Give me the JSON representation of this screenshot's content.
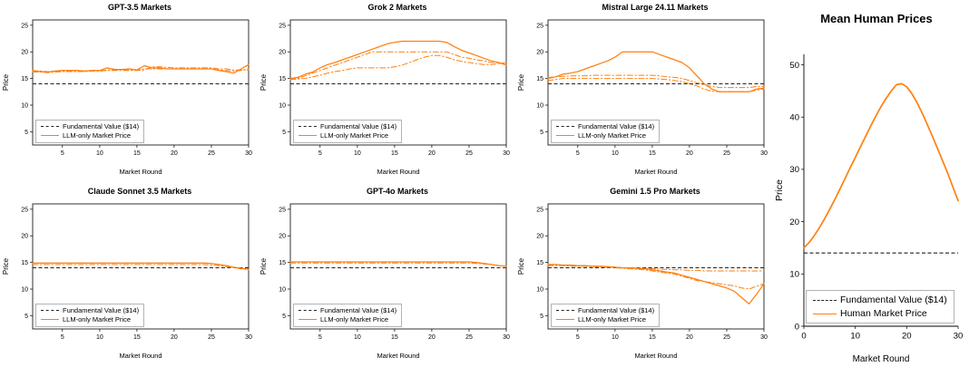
{
  "colors": {
    "llm_orange": "#ff7f0e",
    "fundamental": "#222222",
    "spine": "#000000",
    "legend_border": "#b3b3b3"
  },
  "chart_data": [
    {
      "type": "line",
      "title": "GPT-3.5 Markets",
      "xlabel": "Market Round",
      "ylabel": "Price",
      "xlim": [
        1,
        30
      ],
      "ylim": [
        2.5,
        26
      ],
      "xticks": [
        5,
        10,
        15,
        20,
        25,
        30
      ],
      "yticks": [
        5,
        10,
        15,
        20,
        25
      ],
      "fundamental_value": 14,
      "legend": [
        {
          "label": "Fundamental Value ($14)",
          "style": "dashed",
          "color": "#222222"
        },
        {
          "label": "LLM-only Market Price",
          "style": "solid",
          "color": "#ff7f0e"
        }
      ],
      "x": [
        1,
        2,
        3,
        4,
        5,
        6,
        7,
        8,
        9,
        10,
        11,
        12,
        13,
        14,
        15,
        16,
        17,
        18,
        19,
        20,
        21,
        22,
        23,
        24,
        25,
        26,
        27,
        28,
        29,
        30
      ],
      "series": [
        {
          "name": "market-1",
          "style": "solid",
          "values": [
            16.5,
            16.3,
            16.2,
            16.4,
            16.5,
            16.5,
            16.5,
            16.4,
            16.5,
            16.5,
            17.0,
            16.7,
            16.7,
            16.8,
            16.6,
            17.4,
            17.0,
            17.0,
            16.8,
            16.8,
            16.8,
            16.8,
            16.8,
            16.8,
            16.8,
            16.5,
            16.3,
            16.0,
            16.8,
            17.6
          ]
        },
        {
          "name": "market-2",
          "style": "dashdot",
          "values": [
            16.2,
            16.2,
            16.1,
            16.2,
            16.3,
            16.3,
            16.3,
            16.3,
            16.4,
            16.4,
            16.5,
            16.5,
            16.5,
            16.5,
            16.5,
            16.6,
            17.2,
            17.2,
            17.1,
            17.0,
            17.0,
            17.0,
            17.0,
            17.0,
            17.0,
            16.8,
            16.8,
            16.6,
            16.6,
            16.6
          ]
        },
        {
          "name": "market-3",
          "style": "dashdot",
          "values": [
            16.4,
            16.4,
            16.3,
            16.3,
            16.4,
            16.4,
            16.4,
            16.4,
            16.4,
            16.4,
            16.6,
            16.6,
            16.6,
            16.6,
            16.6,
            16.8,
            16.8,
            16.8,
            16.8,
            16.8,
            16.8,
            16.8,
            16.8,
            16.8,
            16.8,
            16.6,
            16.5,
            16.4,
            16.5,
            16.8
          ]
        }
      ]
    },
    {
      "type": "line",
      "title": "Grok 2 Markets",
      "xlabel": "Market Round",
      "ylabel": "Price",
      "xlim": [
        1,
        30
      ],
      "ylim": [
        2.5,
        26
      ],
      "xticks": [
        5,
        10,
        15,
        20,
        25,
        30
      ],
      "yticks": [
        5,
        10,
        15,
        20,
        25
      ],
      "fundamental_value": 14,
      "legend": [
        {
          "label": "Fundamental Value ($14)",
          "style": "dashed",
          "color": "#222222"
        },
        {
          "label": "LLM-only Market Price",
          "style": "solid",
          "color": "#ff7f0e"
        }
      ],
      "x": [
        1,
        2,
        3,
        4,
        5,
        6,
        7,
        8,
        9,
        10,
        11,
        12,
        13,
        14,
        15,
        16,
        17,
        18,
        19,
        20,
        21,
        22,
        23,
        24,
        25,
        26,
        27,
        28,
        29,
        30
      ],
      "series": [
        {
          "name": "market-1",
          "style": "solid",
          "values": [
            15.0,
            15.2,
            15.8,
            16.2,
            17.0,
            17.6,
            18.0,
            18.5,
            19.0,
            19.5,
            20.0,
            20.5,
            21.0,
            21.5,
            21.8,
            22.0,
            22.0,
            22.0,
            22.0,
            22.0,
            22.0,
            21.8,
            21.0,
            20.3,
            19.8,
            19.3,
            18.8,
            18.3,
            18.0,
            17.5
          ]
        },
        {
          "name": "market-2",
          "style": "dashdot",
          "values": [
            14.8,
            15.0,
            15.5,
            16.0,
            16.5,
            17.0,
            17.5,
            18.0,
            18.5,
            19.0,
            19.5,
            20.0,
            20.0,
            20.0,
            20.0,
            20.0,
            20.0,
            20.0,
            20.0,
            20.0,
            20.0,
            20.0,
            19.5,
            19.0,
            18.8,
            18.5,
            18.3,
            18.0,
            18.0,
            17.5
          ]
        },
        {
          "name": "market-3",
          "style": "dashdot",
          "values": [
            14.8,
            14.9,
            15.0,
            15.3,
            15.6,
            16.0,
            16.3,
            16.5,
            16.8,
            17.0,
            17.0,
            17.0,
            17.0,
            17.0,
            17.2,
            17.5,
            18.0,
            18.5,
            19.0,
            19.3,
            19.3,
            19.0,
            18.5,
            18.2,
            18.0,
            17.8,
            17.6,
            17.6,
            17.8,
            18.0
          ]
        }
      ]
    },
    {
      "type": "line",
      "title": "Mistral Large 24.11 Markets",
      "xlabel": "Market Round",
      "ylabel": "Price",
      "xlim": [
        1,
        30
      ],
      "ylim": [
        2.5,
        26
      ],
      "xticks": [
        5,
        10,
        15,
        20,
        25,
        30
      ],
      "yticks": [
        5,
        10,
        15,
        20,
        25
      ],
      "fundamental_value": 14,
      "legend": [
        {
          "label": "Fundamental Value ($14)",
          "style": "dashed",
          "color": "#222222"
        },
        {
          "label": "LLM-only Market Price",
          "style": "solid",
          "color": "#ff7f0e"
        }
      ],
      "x": [
        1,
        2,
        3,
        4,
        5,
        6,
        7,
        8,
        9,
        10,
        11,
        12,
        13,
        14,
        15,
        16,
        17,
        18,
        19,
        20,
        21,
        22,
        23,
        24,
        25,
        26,
        27,
        28,
        29,
        30
      ],
      "series": [
        {
          "name": "market-1",
          "style": "solid",
          "values": [
            15.0,
            15.3,
            15.8,
            16.0,
            16.3,
            16.8,
            17.3,
            17.8,
            18.3,
            19.0,
            20.0,
            20.0,
            20.0,
            20.0,
            20.0,
            19.5,
            19.0,
            18.5,
            18.0,
            17.0,
            15.5,
            14.0,
            13.0,
            12.5,
            12.5,
            12.5,
            12.5,
            12.5,
            13.0,
            13.2
          ]
        },
        {
          "name": "market-2",
          "style": "dashdot",
          "values": [
            15.2,
            15.3,
            15.4,
            15.5,
            15.5,
            15.5,
            15.6,
            15.6,
            15.6,
            15.6,
            15.6,
            15.6,
            15.6,
            15.6,
            15.6,
            15.5,
            15.3,
            15.2,
            15.0,
            14.6,
            14.2,
            13.8,
            13.5,
            13.3,
            13.3,
            13.3,
            13.3,
            13.3,
            13.5,
            13.5
          ]
        },
        {
          "name": "market-3",
          "style": "dashdot",
          "values": [
            14.6,
            14.8,
            15.0,
            15.0,
            15.0,
            15.0,
            15.0,
            15.0,
            15.0,
            15.0,
            15.0,
            15.0,
            15.0,
            15.0,
            15.0,
            14.9,
            14.8,
            14.6,
            14.4,
            14.0,
            13.6,
            13.0,
            12.6,
            12.5,
            12.5,
            12.5,
            12.5,
            12.5,
            12.8,
            13.0
          ]
        }
      ]
    },
    {
      "type": "line",
      "title": "Claude Sonnet 3.5 Markets",
      "xlabel": "Market Round",
      "ylabel": "Price",
      "xlim": [
        1,
        30
      ],
      "ylim": [
        2.5,
        26
      ],
      "xticks": [
        5,
        10,
        15,
        20,
        25,
        30
      ],
      "yticks": [
        5,
        10,
        15,
        20,
        25
      ],
      "fundamental_value": 14,
      "legend": [
        {
          "label": "Fundamental Value ($14)",
          "style": "dashed",
          "color": "#222222"
        },
        {
          "label": "LLM-only Market Price",
          "style": "solid",
          "color": "#ff7f0e"
        }
      ],
      "x": [
        1,
        2,
        3,
        4,
        5,
        6,
        7,
        8,
        9,
        10,
        11,
        12,
        13,
        14,
        15,
        16,
        17,
        18,
        19,
        20,
        21,
        22,
        23,
        24,
        25,
        26,
        27,
        28,
        29,
        30
      ],
      "series": [
        {
          "name": "market-1",
          "style": "solid",
          "values": [
            14.9,
            14.9,
            14.9,
            14.9,
            14.9,
            14.9,
            14.9,
            14.9,
            14.9,
            14.9,
            14.9,
            14.9,
            14.9,
            14.9,
            14.9,
            14.9,
            14.9,
            14.9,
            14.9,
            14.9,
            14.9,
            14.9,
            14.9,
            14.9,
            14.8,
            14.6,
            14.4,
            14.1,
            13.9,
            13.7
          ]
        },
        {
          "name": "market-2",
          "style": "dashdot",
          "values": [
            14.6,
            14.6,
            14.6,
            14.6,
            14.6,
            14.6,
            14.6,
            14.6,
            14.6,
            14.6,
            14.6,
            14.6,
            14.6,
            14.6,
            14.6,
            14.6,
            14.6,
            14.6,
            14.6,
            14.6,
            14.6,
            14.6,
            14.6,
            14.6,
            14.5,
            14.4,
            14.2,
            14.0,
            13.8,
            13.6
          ]
        }
      ]
    },
    {
      "type": "line",
      "title": "GPT-4o Markets",
      "xlabel": "Market Round",
      "ylabel": "Price",
      "xlim": [
        1,
        30
      ],
      "ylim": [
        2.5,
        26
      ],
      "xticks": [
        5,
        10,
        15,
        20,
        25,
        30
      ],
      "yticks": [
        5,
        10,
        15,
        20,
        25
      ],
      "fundamental_value": 14,
      "legend": [
        {
          "label": "Fundamental Value ($14)",
          "style": "dashed",
          "color": "#222222"
        },
        {
          "label": "LLM-only Market Price",
          "style": "solid",
          "color": "#ff7f0e"
        }
      ],
      "x": [
        1,
        2,
        3,
        4,
        5,
        6,
        7,
        8,
        9,
        10,
        11,
        12,
        13,
        14,
        15,
        16,
        17,
        18,
        19,
        20,
        21,
        22,
        23,
        24,
        25,
        26,
        27,
        28,
        29,
        30
      ],
      "series": [
        {
          "name": "market-1",
          "style": "solid",
          "values": [
            15.1,
            15.1,
            15.1,
            15.1,
            15.1,
            15.1,
            15.1,
            15.1,
            15.1,
            15.1,
            15.1,
            15.1,
            15.1,
            15.1,
            15.1,
            15.1,
            15.1,
            15.1,
            15.1,
            15.1,
            15.1,
            15.1,
            15.1,
            15.1,
            15.1,
            15.0,
            14.8,
            14.6,
            14.4,
            14.3
          ]
        },
        {
          "name": "market-2",
          "style": "dashdot",
          "values": [
            14.9,
            14.9,
            14.9,
            14.9,
            14.9,
            14.9,
            14.9,
            14.9,
            14.9,
            14.9,
            14.9,
            14.9,
            14.9,
            14.9,
            14.9,
            14.9,
            14.9,
            14.9,
            14.9,
            14.9,
            14.9,
            14.9,
            14.9,
            14.9,
            14.9,
            14.8,
            14.7,
            14.6,
            14.4,
            14.3
          ]
        }
      ]
    },
    {
      "type": "line",
      "title": "Gemini 1.5 Pro Markets",
      "xlabel": "Market Round",
      "ylabel": "Price",
      "xlim": [
        1,
        30
      ],
      "ylim": [
        2.5,
        26
      ],
      "xticks": [
        5,
        10,
        15,
        20,
        25,
        30
      ],
      "yticks": [
        5,
        10,
        15,
        20,
        25
      ],
      "fundamental_value": 14,
      "legend": [
        {
          "label": "Fundamental Value ($14)",
          "style": "dashed",
          "color": "#222222"
        },
        {
          "label": "LLM-only Market Price",
          "style": "solid",
          "color": "#ff7f0e"
        }
      ],
      "x": [
        1,
        2,
        3,
        4,
        5,
        6,
        7,
        8,
        9,
        10,
        11,
        12,
        13,
        14,
        15,
        16,
        17,
        18,
        19,
        20,
        21,
        22,
        23,
        24,
        25,
        26,
        27,
        28,
        29,
        30
      ],
      "series": [
        {
          "name": "market-1",
          "style": "solid",
          "values": [
            14.6,
            14.6,
            14.5,
            14.5,
            14.4,
            14.4,
            14.3,
            14.3,
            14.2,
            14.1,
            14.0,
            14.0,
            13.9,
            13.8,
            13.6,
            13.4,
            13.2,
            13.0,
            12.6,
            12.2,
            11.8,
            11.4,
            11.0,
            10.6,
            10.2,
            9.6,
            8.4,
            7.2,
            9.0,
            11.0
          ]
        },
        {
          "name": "market-2",
          "style": "dashdot",
          "values": [
            14.4,
            14.4,
            14.4,
            14.3,
            14.3,
            14.3,
            14.2,
            14.2,
            14.1,
            14.1,
            14.0,
            14.0,
            13.9,
            13.9,
            13.8,
            13.7,
            13.7,
            13.6,
            13.6,
            13.5,
            13.5,
            13.4,
            13.4,
            13.4,
            13.4,
            13.4,
            13.4,
            13.4,
            13.4,
            13.4
          ]
        },
        {
          "name": "market-3",
          "style": "dashdot",
          "values": [
            14.5,
            14.5,
            14.4,
            14.4,
            14.3,
            14.3,
            14.2,
            14.2,
            14.1,
            14.0,
            13.9,
            13.8,
            13.7,
            13.6,
            13.4,
            13.2,
            13.0,
            12.8,
            12.4,
            12.0,
            11.6,
            11.4,
            11.2,
            11.0,
            10.8,
            10.6,
            10.2,
            10.0,
            10.5,
            11.0
          ]
        }
      ]
    },
    {
      "type": "line",
      "title": "Mean Human Prices",
      "xlabel": "Market Round",
      "ylabel": "Price",
      "xlim": [
        0,
        30
      ],
      "ylim": [
        0,
        52
      ],
      "xticks": [
        0,
        10,
        20,
        30
      ],
      "yticks": [
        0,
        10,
        20,
        30,
        40,
        50
      ],
      "fundamental_value": 14,
      "legend": [
        {
          "label": "Fundamental Value ($14)",
          "style": "dashed",
          "color": "#222222"
        },
        {
          "label": "Human Market Price",
          "style": "solid",
          "color": "#ff7f0e"
        }
      ],
      "x": [
        0,
        1,
        2,
        3,
        4,
        5,
        6,
        7,
        8,
        9,
        10,
        11,
        12,
        13,
        14,
        15,
        16,
        17,
        18,
        19,
        20,
        21,
        22,
        23,
        24,
        25,
        26,
        27,
        28,
        29,
        30
      ],
      "series": [
        {
          "name": "mean-human",
          "style": "solid",
          "width": 1.7,
          "values": [
            15.0,
            16.0,
            17.3,
            18.8,
            20.5,
            22.3,
            24.2,
            26.2,
            28.2,
            30.3,
            32.3,
            34.3,
            36.3,
            38.3,
            40.2,
            42.0,
            43.6,
            45.0,
            46.2,
            46.4,
            45.8,
            44.5,
            42.8,
            40.8,
            38.6,
            36.3,
            34.0,
            31.6,
            29.2,
            26.6,
            24.0
          ]
        }
      ]
    }
  ]
}
